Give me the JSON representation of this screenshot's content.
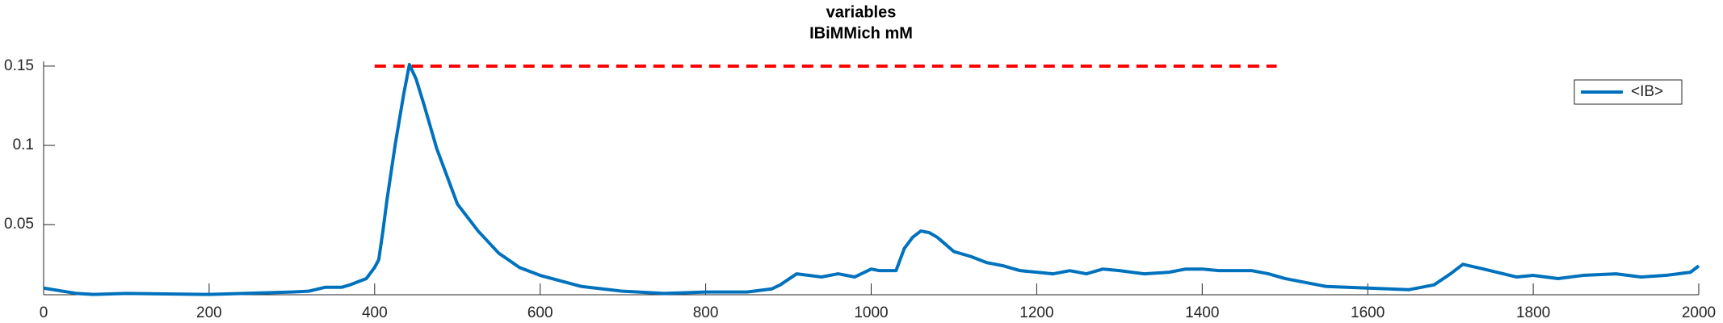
{
  "chart_data": {
    "type": "line",
    "title": [
      "variables",
      "IBiMMich mM"
    ],
    "x": [
      0,
      40,
      60,
      100,
      200,
      300,
      320,
      340,
      360,
      370,
      380,
      390,
      400,
      405,
      410,
      415,
      425,
      435,
      442,
      450,
      460,
      475,
      500,
      525,
      550,
      575,
      600,
      650,
      700,
      750,
      800,
      850,
      880,
      890,
      910,
      940,
      960,
      980,
      1000,
      1010,
      1030,
      1040,
      1050,
      1060,
      1070,
      1080,
      1100,
      1120,
      1140,
      1160,
      1180,
      1200,
      1220,
      1240,
      1260,
      1280,
      1300,
      1330,
      1360,
      1380,
      1400,
      1420,
      1440,
      1460,
      1480,
      1500,
      1550,
      1600,
      1650,
      1680,
      1700,
      1715,
      1740,
      1780,
      1800,
      1830,
      1860,
      1900,
      1930,
      1960,
      1990,
      2000
    ],
    "series": [
      {
        "name": "<IB>",
        "color": "#0072bd",
        "values": [
          0.01,
          0.0066,
          0.006,
          0.0066,
          0.006,
          0.0075,
          0.008,
          0.0105,
          0.0105,
          0.012,
          0.014,
          0.016,
          0.023,
          0.028,
          0.046,
          0.066,
          0.101,
          0.132,
          0.151,
          0.142,
          0.125,
          0.098,
          0.063,
          0.046,
          0.032,
          0.023,
          0.018,
          0.011,
          0.008,
          0.0066,
          0.0075,
          0.0075,
          0.0095,
          0.012,
          0.019,
          0.017,
          0.019,
          0.017,
          0.022,
          0.021,
          0.021,
          0.035,
          0.042,
          0.046,
          0.045,
          0.042,
          0.033,
          0.03,
          0.026,
          0.024,
          0.021,
          0.02,
          0.019,
          0.021,
          0.019,
          0.022,
          0.021,
          0.019,
          0.02,
          0.022,
          0.022,
          0.021,
          0.021,
          0.021,
          0.019,
          0.016,
          0.011,
          0.01,
          0.009,
          0.012,
          0.019,
          0.025,
          0.022,
          0.017,
          0.018,
          0.016,
          0.018,
          0.019,
          0.017,
          0.018,
          0.02,
          0.024
        ]
      }
    ],
    "hline": {
      "y": 0.15,
      "xmin": 400,
      "xmax": 1490,
      "color": "#ff0000"
    },
    "xlim": [
      0,
      2000
    ],
    "xticks": [
      0,
      200,
      400,
      600,
      800,
      1000,
      1200,
      1400,
      1600,
      1800,
      2000
    ],
    "ylim": [
      0.0058,
      0.153
    ],
    "yticks": [
      0.05,
      0.1,
      0.15
    ],
    "legend": "northeast"
  }
}
